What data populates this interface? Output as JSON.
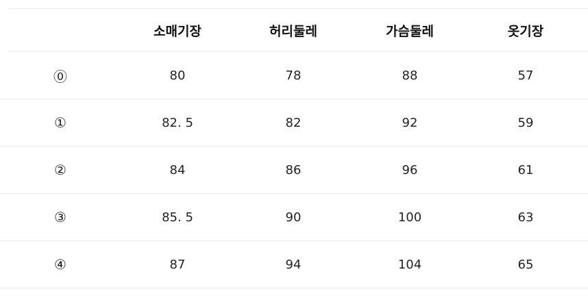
{
  "table": {
    "headers": [
      "",
      "소매기장",
      "허리둘레",
      "가슴둘레",
      "옷기장"
    ],
    "rows": [
      [
        "⓪",
        "80",
        "78",
        "88",
        "57"
      ],
      [
        "①",
        "82. 5",
        "82",
        "92",
        "59"
      ],
      [
        "②",
        "84",
        "86",
        "96",
        "61"
      ],
      [
        "③",
        "85. 5",
        "90",
        "100",
        "63"
      ],
      [
        "④",
        "87",
        "94",
        "104",
        "65"
      ]
    ]
  }
}
